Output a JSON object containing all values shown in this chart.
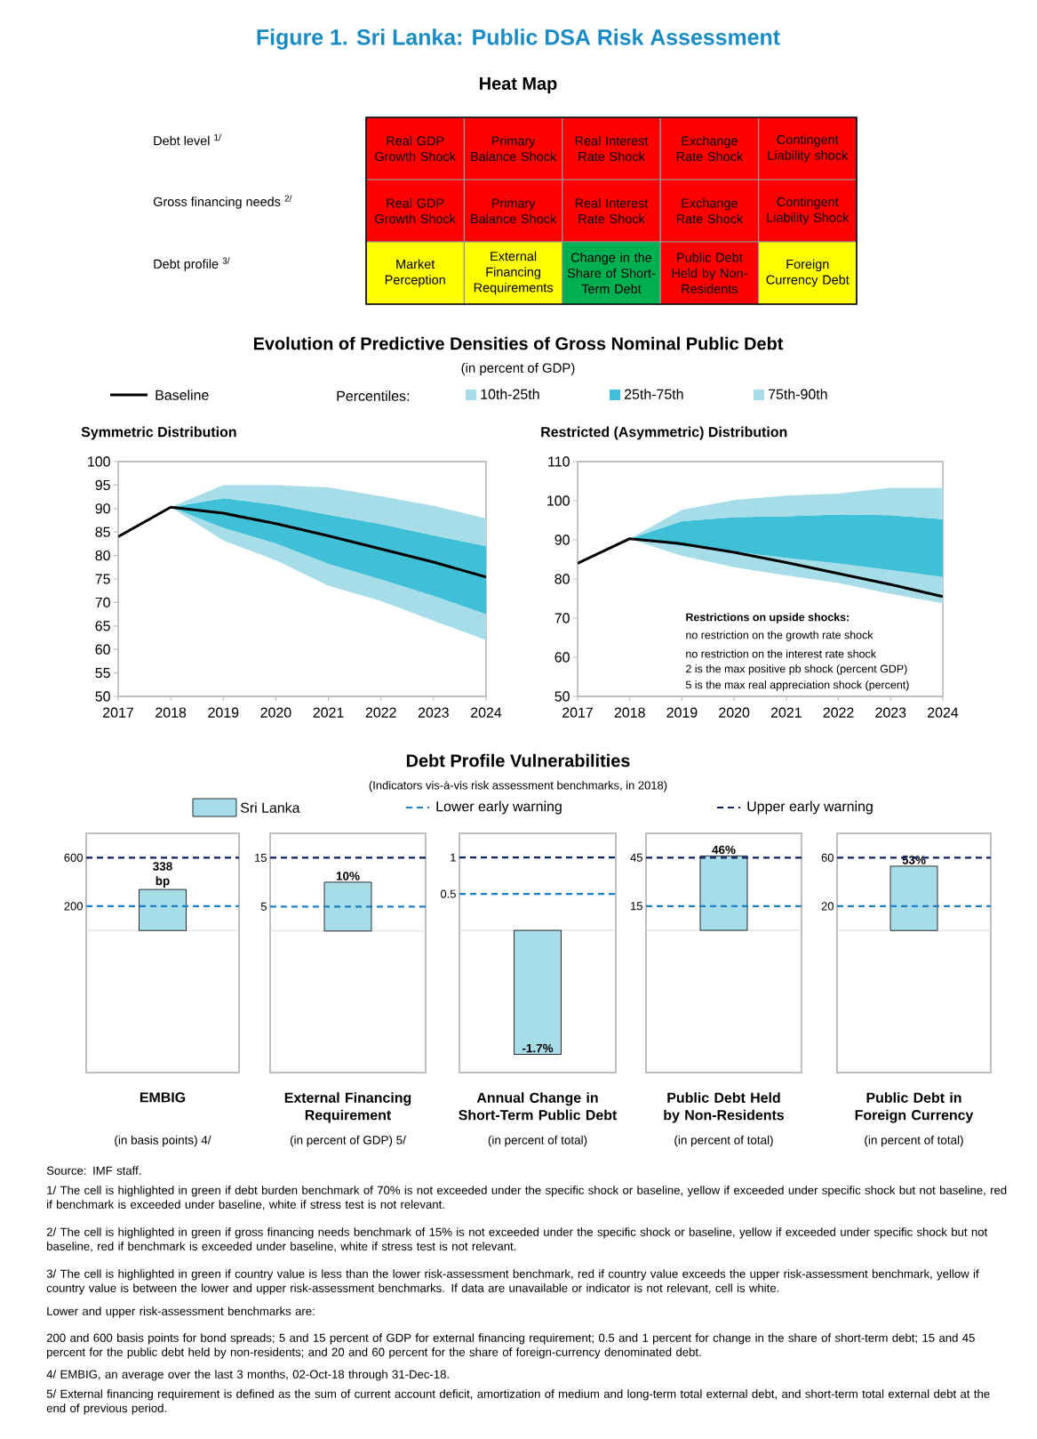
{
  "chart_data": [
    {
      "type": "other",
      "title": "Figure 1. Sri Lanka: Public DSA Risk Assessment",
      "subtitle": "Heat Map",
      "y_categories": [
        "Debt level $^{1/}$",
        "Gross financing needs $^{2/}$",
        "Debt profile $^{3/}$"
      ],
      "cell_labels": [
        [
          "Real GDP Growth Shock",
          "Primary Balance Shock",
          "Real Interest Rate Shock",
          "Exchange Rate Shock",
          "Contingent Liability shock"
        ],
        [
          "Real GDP Growth Shock",
          "Primary Balance Shock",
          "Real Interest Rate Shock",
          "Exchange Rate Shock",
          "Contingent Liability Shock"
        ],
        [
          "Market Perception",
          "External Financing Requirements",
          "Change in the Share of Short-Term Debt",
          "Public Debt Held by Non-Residents",
          "Foreign Currency Debt"
        ]
      ],
      "colors": [
        [
          "#ff0000",
          "#ff0000",
          "#ff0000",
          "#ff0000",
          "#ff0000"
        ],
        [
          "#ff0000",
          "#ff0000",
          "#ff0000",
          "#ff0000",
          "#ff0000"
        ],
        [
          "#ffff00",
          "#ffff00",
          "#00b050",
          "#ff0000",
          "#ffff00"
        ]
      ]
    },
    {
      "type": "line",
      "title": "Symmetric Distribution",
      "annotations": [
        "Evolution of Predictive Densities of Gross Nominal Public Debt",
        "(in percent of GDP)"
      ],
      "x": [
        2017,
        2018,
        2019,
        2020,
        2021,
        2022,
        2023,
        2024
      ],
      "xlim": [
        2017,
        2024
      ],
      "xticks": [
        2017,
        2018,
        2019,
        2020,
        2021,
        2022,
        2023,
        2024
      ],
      "ylim": [
        50,
        100
      ],
      "yticks": [
        50,
        55,
        60,
        65,
        70,
        75,
        80,
        85,
        90,
        95,
        100
      ],
      "legend": "top",
      "legend_title": "Percentiles:",
      "series": [
        {
          "name": "10th-25th",
          "type": "area",
          "color": "#a6dde8",
          "x": [
            2018,
            2019,
            2020,
            2021,
            2022,
            2023,
            2024
          ],
          "lower": [
            90.3,
            83.2,
            79,
            73.6,
            70.3,
            66.1,
            62
          ],
          "upper": [
            90.3,
            85.9,
            82.6,
            78.2,
            74.9,
            71.4,
            67.5
          ],
          "values": [
            null,
            null,
            null,
            null,
            null,
            null,
            null
          ]
        },
        {
          "name": "25th-75th",
          "type": "area",
          "color": "#40c0d6",
          "x": [
            2018,
            2019,
            2020,
            2021,
            2022,
            2023,
            2024
          ],
          "lower": [
            90.3,
            85.9,
            82.6,
            78.2,
            74.9,
            71.4,
            67.5
          ],
          "upper": [
            90.3,
            92.2,
            90.8,
            88.7,
            86.7,
            84.3,
            82
          ],
          "values": [
            null,
            null,
            null,
            null,
            null,
            null,
            null
          ]
        },
        {
          "name": "75th-90th",
          "type": "area",
          "color": "#a6dde8",
          "x": [
            2018,
            2019,
            2020,
            2021,
            2022,
            2023,
            2024
          ],
          "lower": [
            90.3,
            92.2,
            90.8,
            88.7,
            86.7,
            84.3,
            82
          ],
          "upper": [
            90.3,
            95,
            95,
            94.5,
            92.6,
            90.6,
            87.9
          ],
          "values": [
            null,
            null,
            null,
            null,
            null,
            null,
            null
          ]
        },
        {
          "name": "Baseline",
          "color": "#000000",
          "values": [
            84,
            90.3,
            89,
            86.8,
            84.2,
            81.4,
            78.6,
            75.4
          ]
        }
      ]
    },
    {
      "type": "line",
      "title": "Restricted  (Asymmetric) Distribution",
      "annotations": [
        "Restrictions on upside shocks:",
        "no restriction on the growth rate shock",
        "no restriction on the interest rate shock",
        "2 is the max positive pb shock (percent GDP)",
        "5 is the max real appreciation shock (percent)"
      ],
      "x": [
        2017,
        2018,
        2019,
        2020,
        2021,
        2022,
        2023,
        2024
      ],
      "xlim": [
        2017,
        2024
      ],
      "xticks": [
        2017,
        2018,
        2019,
        2020,
        2021,
        2022,
        2023,
        2024
      ],
      "ylim": [
        50,
        110
      ],
      "yticks": [
        50,
        60,
        70,
        80,
        90,
        100,
        110
      ],
      "series": [
        {
          "type": "area",
          "color": "#a6dde8",
          "x": [
            2018,
            2019,
            2020,
            2021,
            2022,
            2023,
            2024
          ],
          "lower": [
            90.3,
            85.9,
            83,
            80.9,
            79,
            76.2,
            73.8
          ],
          "upper": [
            90.3,
            88.4,
            87,
            85.4,
            84,
            82.3,
            80.5
          ],
          "values": [
            null,
            null,
            null,
            null,
            null,
            null,
            null
          ]
        },
        {
          "type": "area",
          "color": "#40c0d6",
          "x": [
            2018,
            2019,
            2020,
            2021,
            2022,
            2023,
            2024
          ],
          "lower": [
            90.3,
            88.4,
            87,
            85.4,
            84,
            82.3,
            80.5
          ],
          "upper": [
            90.3,
            94.8,
            95.8,
            96,
            96.5,
            96.3,
            95.3
          ],
          "values": [
            null,
            null,
            null,
            null,
            null,
            null,
            null
          ]
        },
        {
          "type": "area",
          "color": "#a6dde8",
          "x": [
            2018,
            2019,
            2020,
            2021,
            2022,
            2023,
            2024
          ],
          "lower": [
            90.3,
            94.8,
            95.8,
            96,
            96.5,
            96.3,
            95.3
          ],
          "upper": [
            90.3,
            97.7,
            100.2,
            101.3,
            101.8,
            103.3,
            103.3
          ],
          "values": [
            null,
            null,
            null,
            null,
            null,
            null,
            null
          ]
        },
        {
          "color": "#000000",
          "values": [
            84,
            90.3,
            89,
            86.8,
            84.2,
            81.4,
            78.6,
            75.5
          ]
        }
      ]
    },
    {
      "type": "bar",
      "xlabel": "EMBIG",
      "annotations": [
        "Debt Profile Vulnerabilities",
        "(Indicators vis-à-vis risk assessment benchmarks, in 2018)",
        "(in basis points) 4/"
      ],
      "categories": [
        null
      ],
      "ylim": [
        -1170,
        800
      ],
      "yticks": [
        200,
        600
      ],
      "legend": "top",
      "series": [
        {
          "name": "Sri Lanka",
          "color": "#a6dde8",
          "values": [
            338
          ],
          "value_labels": [
            "338 bp"
          ]
        }
      ],
      "ref_lines": [
        {
          "axis": "y",
          "value": 0,
          "color": "#d9d9d9",
          "line_style": "solid"
        },
        {
          "axis": "y",
          "value": 200,
          "label": "Lower early warning",
          "color": "#1f7fc4",
          "line_style": "dashed"
        },
        {
          "axis": "y",
          "value": 600,
          "label": "Upper early warning",
          "color": "#0d1f63",
          "line_style": "dashed"
        }
      ]
    },
    {
      "type": "bar",
      "xlabel": "External Financing Requirement",
      "annotations": [
        "(in percent of GDP) 5/"
      ],
      "categories": [
        null
      ],
      "ylim": [
        -29,
        20
      ],
      "yticks": [
        5,
        15
      ],
      "series": [
        {
          "color": "#a6dde8",
          "values": [
            10
          ],
          "value_labels": [
            "10%"
          ]
        }
      ],
      "ref_lines": [
        {
          "axis": "y",
          "value": 0,
          "color": "#d9d9d9",
          "line_style": "solid"
        },
        {
          "axis": "y",
          "value": 5,
          "color": "#1f7fc4",
          "line_style": "dashed"
        },
        {
          "axis": "y",
          "value": 15,
          "color": "#0d1f63",
          "line_style": "dashed"
        }
      ]
    },
    {
      "type": "bar",
      "xlabel": "Annual Change in Short-Term Public Debt",
      "annotations": [
        "(in percent of total)"
      ],
      "categories": [
        null
      ],
      "ylim": [
        -1.95,
        1.33
      ],
      "yticks": [
        0.5,
        1
      ],
      "series": [
        {
          "color": "#a6dde8",
          "values": [
            -1.7
          ],
          "value_labels": [
            "-1.7%"
          ]
        }
      ],
      "ref_lines": [
        {
          "axis": "y",
          "value": 0,
          "color": "#d9d9d9",
          "line_style": "solid"
        },
        {
          "axis": "y",
          "value": 0.5,
          "color": "#1f7fc4",
          "line_style": "dashed"
        },
        {
          "axis": "y",
          "value": 1,
          "color": "#0d1f63",
          "line_style": "dashed"
        }
      ]
    },
    {
      "type": "bar",
      "xlabel": "Public Debt Held by Non-Residents",
      "annotations": [
        "(in percent of total)"
      ],
      "categories": [
        null
      ],
      "ylim": [
        -88,
        60
      ],
      "yticks": [
        15,
        45
      ],
      "series": [
        {
          "color": "#a6dde8",
          "values": [
            46
          ],
          "value_labels": [
            "46%"
          ]
        }
      ],
      "ref_lines": [
        {
          "axis": "y",
          "value": 0,
          "color": "#d9d9d9",
          "line_style": "solid"
        },
        {
          "axis": "y",
          "value": 15,
          "color": "#1f7fc4",
          "line_style": "dashed"
        },
        {
          "axis": "y",
          "value": 45,
          "color": "#0d1f63",
          "line_style": "dashed"
        }
      ]
    },
    {
      "type": "bar",
      "xlabel": "Public Debt in Foreign Currency",
      "annotations": [
        "(in percent of total)"
      ],
      "categories": [
        null
      ],
      "ylim": [
        -117,
        80
      ],
      "yticks": [
        20,
        60
      ],
      "series": [
        {
          "color": "#a6dde8",
          "values": [
            53
          ],
          "value_labels": [
            "53%"
          ]
        }
      ],
      "ref_lines": [
        {
          "axis": "y",
          "value": 0,
          "color": "#d9d9d9",
          "line_style": "solid"
        },
        {
          "axis": "y",
          "value": 20,
          "color": "#1f7fc4",
          "line_style": "dashed"
        },
        {
          "axis": "y",
          "value": 60,
          "color": "#0d1f63",
          "line_style": "dashed"
        }
      ]
    },
    {
      "type": "other",
      "annotations": [
        "Source: IMF staff.",
        "1/ The cell is highlighted in green if debt burden benchmark of 70% is not exceeded under the specific shock or baseline, yellow if exceeded under specific shock but not baseline, red if benchmark is exceeded under baseline, white if stress test is not relevant.",
        "2/ The cell is highlighted in green if gross financing needs benchmark of 15% is not exceeded under the specific shock or baseline, yellow if exceeded under specific shock but not baseline, red if benchmark is exceeded under baseline, white if stress test is not relevant.",
        "3/ The cell is highlighted in green if country value is less  than the lower risk-assessment benchmark, red if country value exceeds the upper risk-assessment benchmark, yellow if country value is between the lower and upper risk-assessment benchmarks. If data are unavailable or indicator is not relevant, cell is white.",
        "Lower and upper risk-assessment benchmarks are:",
        "200 and 600 basis points for bond spreads; 5 and 15 percent of GDP for external financing requirement; 0.5 and 1 percent for change in the share of short-term debt; 15 and 45 percent for the public debt held by non-residents; and 20 and 60 percent for the share of foreign-currency denominated debt.",
        "4/ EMBIG, an average over the last 3 months, 02-Oct-18 through 31-Dec-18.",
        "5/ External financing requirement is defined as the sum of current account deficit, amortization of medium and long-term total external debt, and short-term total external debt at the end of previous period."
      ]
    }
  ]
}
